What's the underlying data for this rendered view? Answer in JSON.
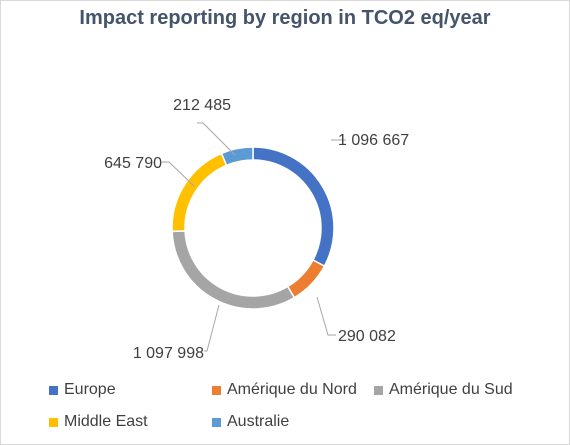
{
  "chart_data": {
    "type": "pie",
    "variant": "doughnut",
    "title": "Impact reporting by region in TCO2 eq/year",
    "categories": [
      "Europe",
      "Amérique du Nord",
      "Amérique du Sud",
      "Middle East",
      "Australie"
    ],
    "values": [
      1096667,
      290082,
      1097998,
      645790,
      212485
    ],
    "value_labels": [
      "1 096 667",
      "290 082",
      "1 097 998",
      "645 790",
      "212 485"
    ],
    "colors": [
      "#4472c4",
      "#ed7d31",
      "#a5a5a5",
      "#ffc000",
      "#5b9bd5"
    ],
    "legend_position": "bottom"
  }
}
